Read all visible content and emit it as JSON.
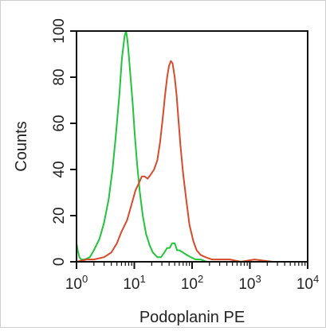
{
  "chart_data": {
    "type": "line",
    "title": "",
    "xlabel": "Podoplanin PE",
    "ylabel": "Counts",
    "x_scale": "log",
    "xlim": [
      1,
      10000
    ],
    "ylim": [
      0,
      100
    ],
    "x_ticks": [
      {
        "value": 1,
        "base": "10",
        "exp": "0"
      },
      {
        "value": 10,
        "base": "10",
        "exp": "1"
      },
      {
        "value": 100,
        "base": "10",
        "exp": "2"
      },
      {
        "value": 1000,
        "base": "10",
        "exp": "3"
      },
      {
        "value": 10000,
        "base": "10",
        "exp": "4"
      }
    ],
    "y_ticks": [
      0,
      20,
      40,
      60,
      80,
      100
    ],
    "grid": false,
    "legend": "none",
    "series": [
      {
        "color": "#22c43a",
        "x": [
          1.0,
          1.05,
          1.12,
          1.2,
          1.4,
          1.7,
          2.0,
          2.5,
          3.0,
          3.6,
          4.2,
          4.8,
          5.5,
          6.1,
          6.8,
          7.2,
          7.6,
          8.0,
          8.6,
          9.4,
          10.2,
          11.2,
          12.5,
          14.0,
          16.0,
          18.5,
          21.0,
          25.0,
          29.0,
          33.0,
          37.0,
          41.0,
          45.0,
          50.0,
          55.0,
          60.0,
          70.0,
          80.0,
          95.0,
          115.0,
          140.0,
          180.0
        ],
        "y": [
          8,
          5,
          2,
          1,
          1,
          2,
          5,
          10,
          17,
          27,
          40,
          55,
          72,
          88,
          98,
          100,
          96,
          90,
          80,
          68,
          55,
          42,
          30,
          20,
          12,
          7,
          4,
          2,
          2,
          4,
          6,
          6,
          8,
          8,
          5,
          5,
          4,
          3,
          2,
          1,
          1,
          0
        ]
      },
      {
        "color": "#d84a2a",
        "x": [
          1.0,
          1.5,
          2.0,
          3.0,
          4.0,
          5.0,
          6.0,
          7.5,
          9.0,
          10.5,
          12.0,
          13.5,
          15.0,
          17.0,
          19.5,
          22.0,
          25.0,
          28.0,
          31.0,
          34.0,
          37.0,
          40.0,
          43.0,
          46.0,
          50.0,
          54.0,
          58.0,
          63.0,
          70.0,
          80.0,
          90.0,
          105.0,
          120.0,
          140.0,
          170.0,
          220.0,
          300.0,
          450.0,
          700.0,
          1200.0,
          2500.0,
          5000.0,
          10000.0
        ],
        "y": [
          0,
          1,
          1,
          2,
          4,
          8,
          13,
          18,
          25,
          31,
          34,
          37,
          37,
          36,
          38,
          40,
          44,
          52,
          62,
          72,
          80,
          85,
          87,
          86,
          80,
          72,
          62,
          50,
          38,
          26,
          16,
          9,
          5,
          3,
          2,
          1,
          1,
          1,
          0,
          1,
          0,
          0,
          0
        ]
      }
    ]
  }
}
